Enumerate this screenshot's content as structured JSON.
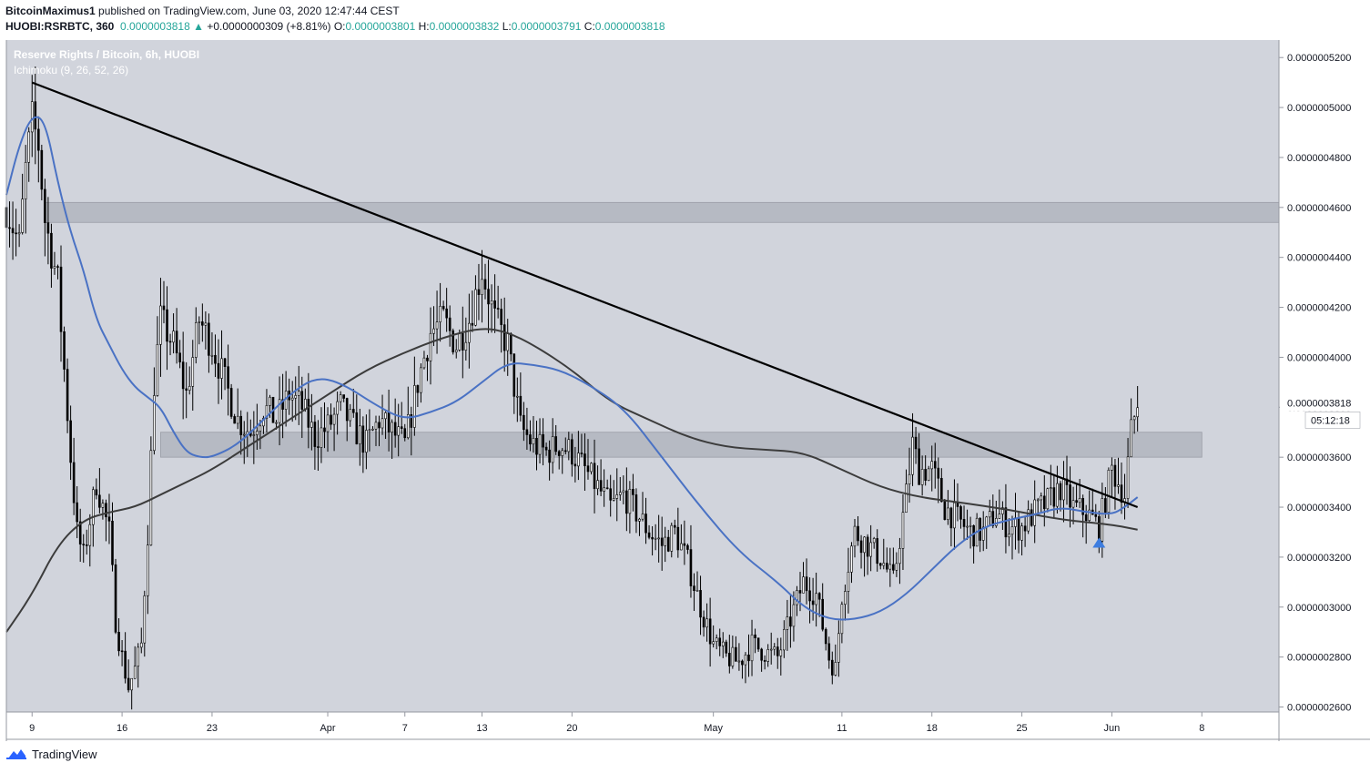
{
  "header": {
    "author": "BitcoinMaximus1",
    "published_text": "published on TradingView.com, June 03, 2020 12:47:44 CEST",
    "symbol": "HUOBI:RSRBTC, 360",
    "last": "0.0000003818",
    "change_arrow": "▲",
    "change": "+0.0000000309 (+8.81%)",
    "o_label": "O:",
    "o_value": "0.0000003801",
    "h_label": "H:",
    "h_value": "0.0000003832",
    "l_label": "L:",
    "l_value": "0.0000003791",
    "c_label": "C:",
    "c_value": "0.0000003818"
  },
  "legend": {
    "title": "Reserve Rights / Bitcoin, 6h, HUOBI",
    "indicator": "Ichimoku (9, 26, 52, 26)"
  },
  "footer": {
    "brand": "TradingView",
    "logo_icon": "tradingview-cloud-icon"
  },
  "colors": {
    "background": "#d1d4dc",
    "candles": "#000000",
    "conversion_line": "#4a72c4",
    "base_line": "#3c3c3c",
    "zones": "#b2b5be",
    "accent": "#26a69a",
    "marker": "#3d7de0"
  },
  "chart_data": {
    "type": "candlestick",
    "title": "Reserve Rights / Bitcoin, 6h, HUOBI",
    "ylim": [
      2.58e-07,
      5.27e-07
    ],
    "y_ticks": [
      "0.0000005200",
      "0.0000005000",
      "0.0000004800",
      "0.0000004600",
      "0.0000004400",
      "0.0000004200",
      "0.0000004000",
      "0.0000003800",
      "0.0000003600",
      "0.0000003400",
      "0.0000003200",
      "0.0000003000",
      "0.0000002800",
      "0.0000002600"
    ],
    "y_tick_values": [
      5.2e-07,
      5e-07,
      4.8e-07,
      4.6e-07,
      4.4e-07,
      4.2e-07,
      4e-07,
      3.8e-07,
      3.6e-07,
      3.4e-07,
      3.2e-07,
      3e-07,
      2.8e-07,
      2.6e-07
    ],
    "x_range": [
      "2020-03-07",
      "2020-06-14"
    ],
    "x_ticks": [
      {
        "date": "2020-03-09",
        "label": "9"
      },
      {
        "date": "2020-03-16",
        "label": "16"
      },
      {
        "date": "2020-03-23",
        "label": "23"
      },
      {
        "date": "2020-04-01",
        "label": "Apr"
      },
      {
        "date": "2020-04-07",
        "label": "7"
      },
      {
        "date": "2020-04-13",
        "label": "13"
      },
      {
        "date": "2020-04-20",
        "label": "20"
      },
      {
        "date": "2020-05-01",
        "label": "May"
      },
      {
        "date": "2020-05-11",
        "label": "11"
      },
      {
        "date": "2020-05-18",
        "label": "18"
      },
      {
        "date": "2020-05-25",
        "label": "25"
      },
      {
        "date": "2020-06-01",
        "label": "Jun"
      },
      {
        "date": "2020-06-08",
        "label": "8"
      }
    ],
    "last_price_label": "0.0000003818",
    "last_price": 3.818e-07,
    "countdown_label": "05:12:18",
    "price_path": [
      [
        "2020-03-07",
        4.6e-07
      ],
      [
        "2020-03-08",
        4.45e-07
      ],
      [
        "2020-03-08T12",
        4.75e-07
      ],
      [
        "2020-03-09",
        4.95e-07
      ],
      [
        "2020-03-09T12",
        4.85e-07
      ],
      [
        "2020-03-10",
        4.55e-07
      ],
      [
        "2020-03-11",
        4.3e-07
      ],
      [
        "2020-03-12",
        3.6e-07
      ],
      [
        "2020-03-12T12",
        3.3e-07
      ],
      [
        "2020-03-13",
        3.2e-07
      ],
      [
        "2020-03-14",
        3.5e-07
      ],
      [
        "2020-03-15",
        3.3e-07
      ],
      [
        "2020-03-15T12",
        2.95e-07
      ],
      [
        "2020-03-16",
        2.8e-07
      ],
      [
        "2020-03-16T12",
        2.68e-07
      ],
      [
        "2020-03-17",
        2.75e-07
      ],
      [
        "2020-03-17T12",
        2.85e-07
      ],
      [
        "2020-03-18",
        3.3e-07
      ],
      [
        "2020-03-18T12",
        3.9e-07
      ],
      [
        "2020-03-19",
        4.15e-07
      ],
      [
        "2020-03-20",
        4.05e-07
      ],
      [
        "2020-03-21",
        3.85e-07
      ],
      [
        "2020-03-22",
        4.15e-07
      ],
      [
        "2020-03-23",
        4.05e-07
      ],
      [
        "2020-03-24",
        3.9e-07
      ],
      [
        "2020-03-25",
        3.75e-07
      ],
      [
        "2020-03-26",
        3.7e-07
      ],
      [
        "2020-03-27",
        3.8e-07
      ],
      [
        "2020-03-28",
        3.75e-07
      ],
      [
        "2020-03-29",
        3.85e-07
      ],
      [
        "2020-03-30",
        3.8e-07
      ],
      [
        "2020-03-31",
        3.68e-07
      ],
      [
        "2020-04-01",
        3.72e-07
      ],
      [
        "2020-04-02",
        3.8e-07
      ],
      [
        "2020-04-03",
        3.72e-07
      ],
      [
        "2020-04-04",
        3.65e-07
      ],
      [
        "2020-04-05",
        3.75e-07
      ],
      [
        "2020-04-06",
        3.7e-07
      ],
      [
        "2020-04-07",
        3.65e-07
      ],
      [
        "2020-04-08",
        3.9e-07
      ],
      [
        "2020-04-09",
        4.1e-07
      ],
      [
        "2020-04-10",
        4.15e-07
      ],
      [
        "2020-04-11",
        4.05e-07
      ],
      [
        "2020-04-12",
        4.15e-07
      ],
      [
        "2020-04-13",
        4.35e-07
      ],
      [
        "2020-04-13T12",
        4.25e-07
      ],
      [
        "2020-04-14",
        4.15e-07
      ],
      [
        "2020-04-15",
        4.05e-07
      ],
      [
        "2020-04-16",
        3.72e-07
      ],
      [
        "2020-04-17",
        3.65e-07
      ],
      [
        "2020-04-18",
        3.62e-07
      ],
      [
        "2020-04-19",
        3.65e-07
      ],
      [
        "2020-04-20",
        3.62e-07
      ],
      [
        "2020-04-21",
        3.55e-07
      ],
      [
        "2020-04-22",
        3.48e-07
      ],
      [
        "2020-04-23",
        3.4e-07
      ],
      [
        "2020-04-24",
        3.45e-07
      ],
      [
        "2020-04-25",
        3.38e-07
      ],
      [
        "2020-04-26",
        3.3e-07
      ],
      [
        "2020-04-27",
        3.25e-07
      ],
      [
        "2020-04-28",
        3.3e-07
      ],
      [
        "2020-04-29",
        3.18e-07
      ],
      [
        "2020-04-30",
        3e-07
      ],
      [
        "2020-05-01",
        2.85e-07
      ],
      [
        "2020-05-02",
        2.8e-07
      ],
      [
        "2020-05-03",
        2.78e-07
      ],
      [
        "2020-05-04",
        2.85e-07
      ],
      [
        "2020-05-05",
        2.82e-07
      ],
      [
        "2020-05-06",
        2.8e-07
      ],
      [
        "2020-05-07",
        2.95e-07
      ],
      [
        "2020-05-08",
        3.1e-07
      ],
      [
        "2020-05-09",
        3.05e-07
      ],
      [
        "2020-05-10",
        2.8e-07
      ],
      [
        "2020-05-10T12",
        2.75e-07
      ],
      [
        "2020-05-11",
        3.05e-07
      ],
      [
        "2020-05-12",
        3.3e-07
      ],
      [
        "2020-05-13",
        3.25e-07
      ],
      [
        "2020-05-14",
        3.2e-07
      ],
      [
        "2020-05-15",
        3.1e-07
      ],
      [
        "2020-05-16",
        3.45e-07
      ],
      [
        "2020-05-16T12",
        3.65e-07
      ],
      [
        "2020-05-17",
        3.55e-07
      ],
      [
        "2020-05-18",
        3.55e-07
      ],
      [
        "2020-05-19",
        3.4e-07
      ],
      [
        "2020-05-20",
        3.35e-07
      ],
      [
        "2020-05-21",
        3.3e-07
      ],
      [
        "2020-05-22",
        3.3e-07
      ],
      [
        "2020-05-23",
        3.38e-07
      ],
      [
        "2020-05-24",
        3.32e-07
      ],
      [
        "2020-05-25",
        3.32e-07
      ],
      [
        "2020-05-26",
        3.38e-07
      ],
      [
        "2020-05-27",
        3.42e-07
      ],
      [
        "2020-05-28",
        3.48e-07
      ],
      [
        "2020-05-29",
        3.4e-07
      ],
      [
        "2020-05-30",
        3.38e-07
      ],
      [
        "2020-05-31",
        3.32e-07
      ],
      [
        "2020-06-01",
        3.55e-07
      ],
      [
        "2020-06-02",
        3.45e-07
      ],
      [
        "2020-06-02T12",
        3.7e-07
      ],
      [
        "2020-06-03",
        3.818e-07
      ]
    ],
    "conversion_line": [
      [
        "2020-03-07",
        4.65e-07
      ],
      [
        "2020-03-08",
        4.85e-07
      ],
      [
        "2020-03-09",
        4.97e-07
      ],
      [
        "2020-03-10",
        4.95e-07
      ],
      [
        "2020-03-11",
        4.7e-07
      ],
      [
        "2020-03-12",
        4.5e-07
      ],
      [
        "2020-03-13",
        4.35e-07
      ],
      [
        "2020-03-14",
        4.15e-07
      ],
      [
        "2020-03-15",
        4.05e-07
      ],
      [
        "2020-03-16",
        3.95e-07
      ],
      [
        "2020-03-17",
        3.88e-07
      ],
      [
        "2020-03-18",
        3.84e-07
      ],
      [
        "2020-03-19",
        3.8e-07
      ],
      [
        "2020-03-20",
        3.7e-07
      ],
      [
        "2020-03-21",
        3.62e-07
      ],
      [
        "2020-03-22",
        3.6e-07
      ],
      [
        "2020-03-23",
        3.6e-07
      ],
      [
        "2020-03-25",
        3.65e-07
      ],
      [
        "2020-03-27",
        3.75e-07
      ],
      [
        "2020-03-29",
        3.85e-07
      ],
      [
        "2020-03-31",
        3.92e-07
      ],
      [
        "2020-04-02",
        3.9e-07
      ],
      [
        "2020-04-05",
        3.8e-07
      ],
      [
        "2020-04-07",
        3.75e-07
      ],
      [
        "2020-04-09",
        3.78e-07
      ],
      [
        "2020-04-11",
        3.82e-07
      ],
      [
        "2020-04-13",
        3.9e-07
      ],
      [
        "2020-04-15",
        3.98e-07
      ],
      [
        "2020-04-17",
        3.97e-07
      ],
      [
        "2020-04-19",
        3.95e-07
      ],
      [
        "2020-04-21",
        3.9e-07
      ],
      [
        "2020-04-24",
        3.8e-07
      ],
      [
        "2020-04-27",
        3.6e-07
      ],
      [
        "2020-04-30",
        3.4e-07
      ],
      [
        "2020-05-03",
        3.22e-07
      ],
      [
        "2020-05-06",
        3.1e-07
      ],
      [
        "2020-05-08",
        3e-07
      ],
      [
        "2020-05-10",
        2.95e-07
      ],
      [
        "2020-05-12",
        2.95e-07
      ],
      [
        "2020-05-14",
        2.98e-07
      ],
      [
        "2020-05-16",
        3.05e-07
      ],
      [
        "2020-05-18",
        3.15e-07
      ],
      [
        "2020-05-20",
        3.25e-07
      ],
      [
        "2020-05-22",
        3.32e-07
      ],
      [
        "2020-05-24",
        3.35e-07
      ],
      [
        "2020-05-26",
        3.37e-07
      ],
      [
        "2020-05-28",
        3.4e-07
      ],
      [
        "2020-05-30",
        3.38e-07
      ],
      [
        "2020-06-01",
        3.37e-07
      ],
      [
        "2020-06-02",
        3.4e-07
      ],
      [
        "2020-06-03",
        3.44e-07
      ]
    ],
    "base_line": [
      [
        "2020-03-07",
        2.9e-07
      ],
      [
        "2020-03-09",
        3.05e-07
      ],
      [
        "2020-03-11",
        3.25e-07
      ],
      [
        "2020-03-13",
        3.35e-07
      ],
      [
        "2020-03-15",
        3.38e-07
      ],
      [
        "2020-03-17",
        3.4e-07
      ],
      [
        "2020-03-19",
        3.45e-07
      ],
      [
        "2020-03-21",
        3.5e-07
      ],
      [
        "2020-03-23",
        3.55e-07
      ],
      [
        "2020-03-26",
        3.65e-07
      ],
      [
        "2020-03-29",
        3.75e-07
      ],
      [
        "2020-04-01",
        3.85e-07
      ],
      [
        "2020-04-04",
        3.95e-07
      ],
      [
        "2020-04-07",
        4.02e-07
      ],
      [
        "2020-04-10",
        4.08e-07
      ],
      [
        "2020-04-13",
        4.12e-07
      ],
      [
        "2020-04-15",
        4.1e-07
      ],
      [
        "2020-04-17",
        4.05e-07
      ],
      [
        "2020-04-20",
        3.95e-07
      ],
      [
        "2020-04-23",
        3.82e-07
      ],
      [
        "2020-04-26",
        3.75e-07
      ],
      [
        "2020-04-29",
        3.68e-07
      ],
      [
        "2020-05-02",
        3.64e-07
      ],
      [
        "2020-05-05",
        3.63e-07
      ],
      [
        "2020-05-08",
        3.62e-07
      ],
      [
        "2020-05-11",
        3.55e-07
      ],
      [
        "2020-05-14",
        3.48e-07
      ],
      [
        "2020-05-17",
        3.44e-07
      ],
      [
        "2020-05-20",
        3.42e-07
      ],
      [
        "2020-05-24",
        3.39e-07
      ],
      [
        "2020-05-28",
        3.35e-07
      ],
      [
        "2020-06-01",
        3.33e-07
      ],
      [
        "2020-06-03",
        3.31e-07
      ]
    ],
    "zones": [
      {
        "x_start": "2020-03-10",
        "x_end": "2020-06-14",
        "y_low": 4.54e-07,
        "y_high": 4.62e-07
      },
      {
        "x_start": "2020-03-19",
        "x_end": "2020-06-08",
        "y_low": 3.6e-07,
        "y_high": 3.7e-07
      }
    ],
    "trendline": {
      "start": [
        "2020-03-09",
        5.1e-07
      ],
      "end": [
        "2020-06-03",
        3.4e-07
      ]
    },
    "marker": {
      "type": "triangle-up",
      "date": "2020-05-31",
      "price": 3.26e-07
    }
  }
}
